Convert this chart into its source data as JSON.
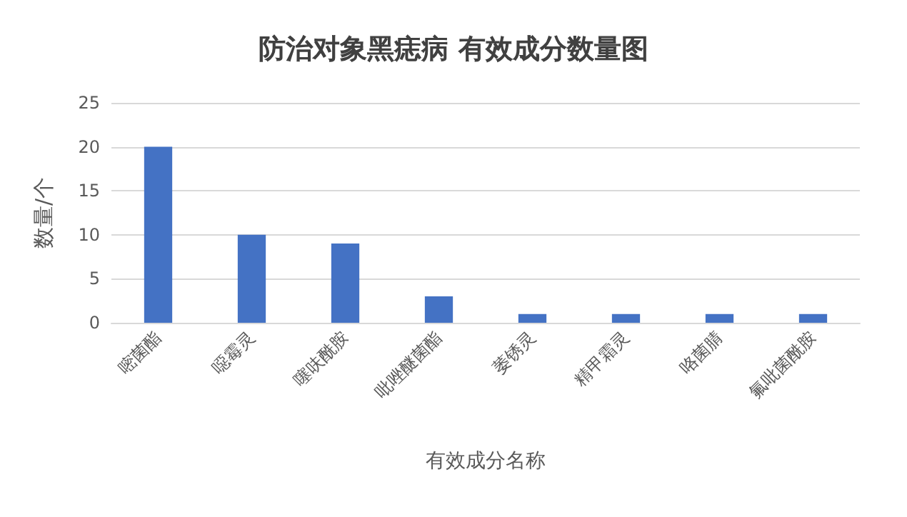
{
  "chart_data": {
    "type": "bar",
    "title": "防治对象黑痣病 有效成分数量图",
    "xlabel": "有效成分名称",
    "ylabel": "数量/个",
    "categories": [
      "嘧菌酯",
      "噁霉灵",
      "噻呋酰胺",
      "吡唑醚菌酯",
      "萎锈灵",
      "精甲霜灵",
      "咯菌腈",
      "氟吡菌酰胺"
    ],
    "values": [
      20,
      10,
      9,
      3,
      1,
      1,
      1,
      1
    ],
    "color": "#4472c4",
    "ylim": [
      0,
      25
    ],
    "yticks": [
      0,
      5,
      10,
      15,
      20,
      25
    ],
    "grid": "y"
  }
}
